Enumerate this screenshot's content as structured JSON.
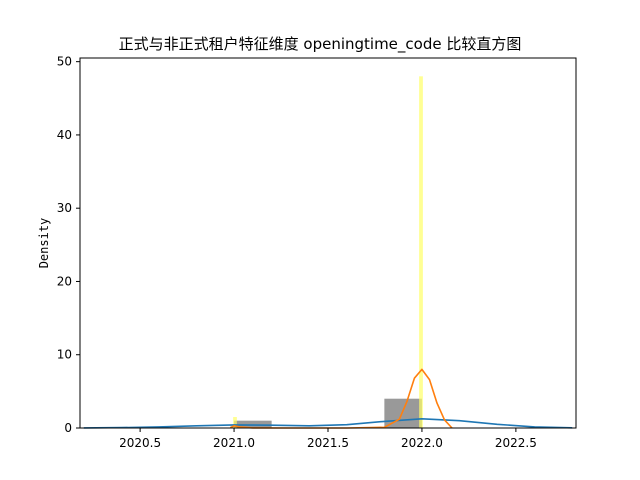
{
  "chart_data": {
    "type": "bar",
    "title": "正式与非正式租户特征维度 openingtime_code 比较直方图",
    "xlabel": "",
    "ylabel": "Density",
    "xlim": [
      2020.18,
      2022.82
    ],
    "ylim": [
      0,
      50.5
    ],
    "xticks": [
      2020.5,
      2021.0,
      2021.5,
      2022.0,
      2022.5
    ],
    "xtick_labels": [
      "2020.5",
      "2021.0",
      "2021.5",
      "2022.0",
      "2022.5"
    ],
    "yticks": [
      0,
      10,
      20,
      30,
      40,
      50
    ],
    "ytick_labels": [
      "0",
      "10",
      "20",
      "30",
      "40",
      "50"
    ],
    "grid": false,
    "series": [
      {
        "kind": "histogram",
        "color": "#808080",
        "opacity": 0.8,
        "bins": [
          {
            "x0": 2021.0,
            "x1": 2021.2,
            "density": 1.0
          },
          {
            "x0": 2021.8,
            "x1": 2022.0,
            "density": 4.0
          }
        ]
      },
      {
        "kind": "histogram",
        "color": "#ffff66",
        "opacity": 0.7,
        "bins": [
          {
            "x0": 2020.995,
            "x1": 2021.015,
            "density": 1.5
          },
          {
            "x0": 2021.985,
            "x1": 2022.005,
            "density": 48.0
          }
        ]
      },
      {
        "kind": "kde",
        "color": "#1f77b4",
        "x": [
          2020.2,
          2020.4,
          2020.6,
          2020.8,
          2021.0,
          2021.2,
          2021.4,
          2021.6,
          2021.8,
          2022.0,
          2022.2,
          2022.4,
          2022.6,
          2022.8
        ],
        "y": [
          0.02,
          0.06,
          0.15,
          0.3,
          0.42,
          0.38,
          0.3,
          0.45,
          0.9,
          1.25,
          1.0,
          0.5,
          0.15,
          0.03
        ]
      },
      {
        "kind": "kde",
        "color": "#ff7f0e",
        "x": [
          2020.98,
          2021.0,
          2021.03,
          2021.1,
          2021.3,
          2021.6,
          2021.8,
          2021.88,
          2021.92,
          2021.96,
          2022.0,
          2022.04,
          2022.08,
          2022.12,
          2022.16
        ],
        "y": [
          0.05,
          0.3,
          0.15,
          0.02,
          0.0,
          0.0,
          0.1,
          1.2,
          3.6,
          6.8,
          8.0,
          6.6,
          3.4,
          1.1,
          0.0
        ]
      }
    ]
  }
}
